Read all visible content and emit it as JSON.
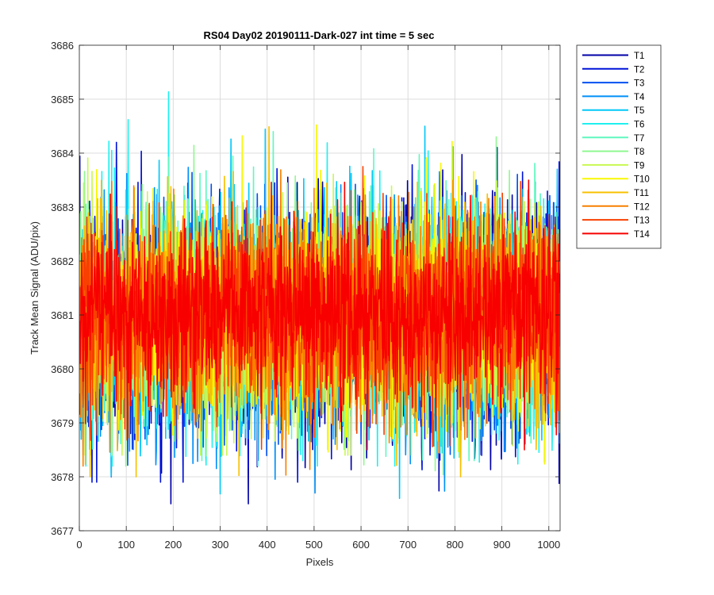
{
  "chart_data": {
    "type": "line",
    "title": "RS04 Day02 20190111-Dark-027 int time = 5 sec",
    "xlabel": "Pixels",
    "ylabel": "Track Mean Signal (ADU/pix)",
    "xlim": [
      0,
      1024
    ],
    "ylim": [
      3677,
      3686
    ],
    "xticks": [
      "0",
      "100",
      "200",
      "300",
      "400",
      "500",
      "600",
      "700",
      "800",
      "900",
      "1000"
    ],
    "yticks": [
      "3677",
      "3678",
      "3679",
      "3680",
      "3681",
      "3682",
      "3683",
      "3684",
      "3685",
      "3686"
    ],
    "grid": true,
    "legend_position": "outside-right-top",
    "n_points_per_series": 1024,
    "series": [
      {
        "name": "T1",
        "color": "#0000a8",
        "mean": 3680.9,
        "sd": 1.1,
        "min": 3677.5,
        "max": 3684.3
      },
      {
        "name": "T2",
        "color": "#0012d8",
        "mean": 3680.9,
        "sd": 1.1,
        "min": 3677.9,
        "max": 3684.2
      },
      {
        "name": "T3",
        "color": "#0050f0",
        "mean": 3680.9,
        "sd": 1.05,
        "min": 3678.0,
        "max": 3684.0
      },
      {
        "name": "T4",
        "color": "#0090f8",
        "mean": 3680.9,
        "sd": 1.05,
        "min": 3677.7,
        "max": 3684.6
      },
      {
        "name": "T5",
        "color": "#00c8f8",
        "mean": 3680.9,
        "sd": 1.05,
        "min": 3677.6,
        "max": 3684.5
      },
      {
        "name": "T6",
        "color": "#20f0f0",
        "mean": 3680.9,
        "sd": 1.05,
        "min": 3678.2,
        "max": 3685.4
      },
      {
        "name": "T7",
        "color": "#60f8c0",
        "mean": 3680.95,
        "sd": 1.0,
        "min": 3678.3,
        "max": 3684.4
      },
      {
        "name": "T8",
        "color": "#90f890",
        "mean": 3680.95,
        "sd": 1.0,
        "min": 3677.4,
        "max": 3684.3
      },
      {
        "name": "T9",
        "color": "#c8f850",
        "mean": 3680.95,
        "sd": 1.0,
        "min": 3678.4,
        "max": 3684.3
      },
      {
        "name": "T10",
        "color": "#f8f800",
        "mean": 3681.0,
        "sd": 1.0,
        "min": 3678.1,
        "max": 3685.5
      },
      {
        "name": "T11",
        "color": "#f8c000",
        "mean": 3681.0,
        "sd": 1.0,
        "min": 3678.0,
        "max": 3684.5
      },
      {
        "name": "T12",
        "color": "#f88000",
        "mean": 3681.0,
        "sd": 0.95,
        "min": 3677.3,
        "max": 3684.5
      },
      {
        "name": "T13",
        "color": "#f84000",
        "mean": 3681.0,
        "sd": 0.9,
        "min": 3678.0,
        "max": 3684.0
      },
      {
        "name": "T14",
        "color": "#f80000",
        "mean": 3681.0,
        "sd": 0.8,
        "min": 3678.5,
        "max": 3683.5
      }
    ]
  }
}
